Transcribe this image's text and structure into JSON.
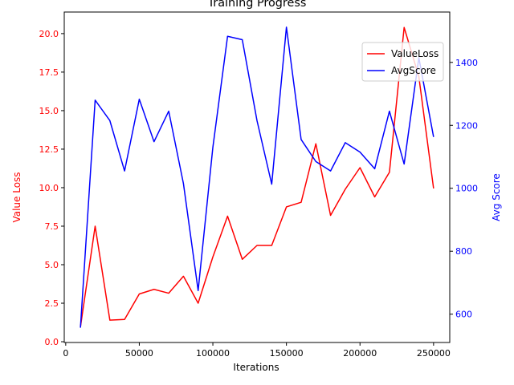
{
  "chart_data": {
    "type": "line",
    "title": "Training Progress",
    "xlabel": "Iterations",
    "ylabel_left": "Value Loss",
    "ylabel_right": "Avg Score",
    "x": [
      10000,
      20000,
      30000,
      40000,
      50000,
      60000,
      70000,
      80000,
      90000,
      100000,
      110000,
      120000,
      130000,
      140000,
      150000,
      160000,
      170000,
      180000,
      190000,
      200000,
      210000,
      220000,
      230000,
      240000,
      250000
    ],
    "xlim": [
      -1000,
      261000
    ],
    "ylim_left": [
      -0.05,
      21.4
    ],
    "ylim_right": [
      510,
      1560
    ],
    "x_ticks": [
      0,
      50000,
      100000,
      150000,
      200000,
      250000
    ],
    "y_ticks_left": [
      0.0,
      2.5,
      5.0,
      7.5,
      10.0,
      12.5,
      15.0,
      17.5,
      20.0
    ],
    "y_ticks_right": [
      600,
      800,
      1000,
      1200,
      1400
    ],
    "left_axis_color": "#ff0000",
    "right_axis_color": "#0000ff",
    "legend_position": "upper-right",
    "series": [
      {
        "name": "ValueLoss",
        "axis": "left",
        "color": "#ff0000",
        "values": [
          0.95,
          7.5,
          1.4,
          1.45,
          3.1,
          3.4,
          3.15,
          4.25,
          2.5,
          5.5,
          8.15,
          5.35,
          6.25,
          6.25,
          8.75,
          9.05,
          12.85,
          8.2,
          9.9,
          11.3,
          9.4,
          11.0,
          20.4,
          17.2,
          9.95
        ]
      },
      {
        "name": "AvgScore",
        "axis": "right",
        "color": "#0000ff",
        "values": [
          557,
          1280,
          1215,
          1055,
          1283,
          1148,
          1245,
          1015,
          675,
          1130,
          1483,
          1472,
          1215,
          1013,
          1512,
          1155,
          1085,
          1055,
          1145,
          1115,
          1062,
          1245,
          1077,
          1415,
          1163
        ]
      }
    ]
  }
}
